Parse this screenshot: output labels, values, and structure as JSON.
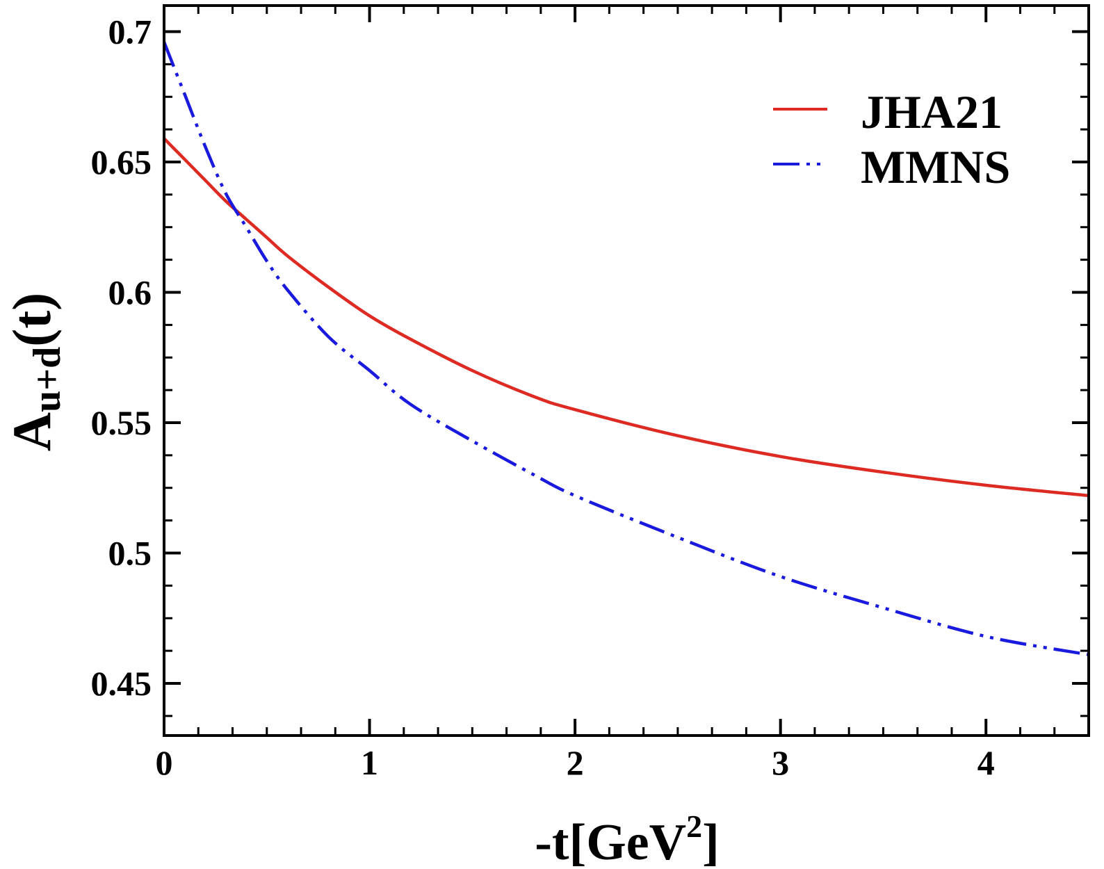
{
  "chart_data": {
    "type": "line",
    "title": "",
    "xlabel": {
      "main": "-t[GeV",
      "sup": "2",
      "tail": "]"
    },
    "ylabel": {
      "main": "A",
      "sub": "u+d",
      "tail": "(t)"
    },
    "xlim": [
      0,
      4.5
    ],
    "ylim": [
      0.43,
      0.71
    ],
    "xticks": [
      0,
      1,
      2,
      3,
      4
    ],
    "xtick_labels": [
      "0",
      "1",
      "2",
      "3",
      "4"
    ],
    "x_minor_step": 0.166667,
    "yticks": [
      0.45,
      0.5,
      0.55,
      0.6,
      0.65,
      0.7
    ],
    "ytick_labels": [
      "0.45",
      "0.5",
      "0.55",
      "0.6",
      "0.65",
      "0.7"
    ],
    "y_minor_step": 0.0125,
    "grid": false,
    "legend_position": "top-right",
    "x": [
      0,
      0.1,
      0.2,
      0.3,
      0.4,
      0.5,
      0.6,
      0.8,
      1.0,
      1.2,
      1.5,
      1.8,
      2.0,
      2.5,
      3.0,
      3.5,
      4.0,
      4.5
    ],
    "series": [
      {
        "name": "JHA21",
        "color": "#dd2a22",
        "dash": "solid",
        "values": [
          0.659,
          0.651,
          0.643,
          0.635,
          0.628,
          0.621,
          0.614,
          0.602,
          0.591,
          0.582,
          0.57,
          0.56,
          0.555,
          0.545,
          0.537,
          0.531,
          0.526,
          0.522
        ]
      },
      {
        "name": "MMNS",
        "color": "#1a1adf",
        "dash": "dash-dot-dot",
        "values": [
          0.696,
          0.676,
          0.656,
          0.638,
          0.625,
          0.612,
          0.601,
          0.583,
          0.57,
          0.557,
          0.543,
          0.53,
          0.522,
          0.506,
          0.491,
          0.479,
          0.468,
          0.461
        ]
      }
    ]
  }
}
